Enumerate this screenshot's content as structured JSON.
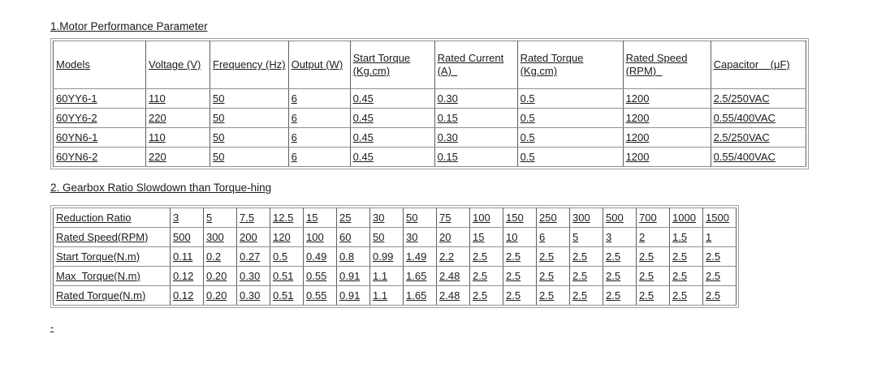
{
  "section1": {
    "title": "1.Motor Performance Parameter",
    "table": {
      "headers": [
        "Models",
        "Voltage (V)",
        "Frequency (Hz)",
        "Output (W)",
        "Start Torque (Kg.cm)",
        "Rated Current (A)  ",
        "Rated Torque (Kg.cm)",
        "Rated Speed (RPM)  ",
        "Capacitor    (μF)"
      ],
      "rows": [
        [
          "60YY6-1",
          "110",
          "50",
          "6",
          "0.45",
          "0.30",
          "0.5",
          "1200",
          "2.5/250VAC"
        ],
        [
          "60YY6-2",
          "220",
          "50",
          "6",
          "0.45",
          "0.15",
          "0.5",
          "1200",
          "0.55/400VAC"
        ],
        [
          "60YN6-1",
          "110",
          "50",
          "6",
          "0.45",
          "0.30",
          "0.5",
          "1200",
          "2.5/250VAC"
        ],
        [
          "60YN6-2",
          "220",
          "50",
          "6",
          "0.45",
          "0.15",
          "0.5",
          "1200",
          "0.55/400VAC"
        ]
      ]
    }
  },
  "section2": {
    "title": "2. Gearbox Ratio Slowdown than Torque-hing",
    "table": {
      "rows": [
        {
          "label": "Reduction Ratio",
          "values": [
            "3",
            "5",
            "7.5",
            "12.5",
            "15",
            "25",
            "30",
            "50",
            "75",
            "100",
            "150",
            "250",
            "300",
            "500",
            "700",
            "1000",
            "1500"
          ]
        },
        {
          "label": "Rated Speed(RPM)",
          "values": [
            "500",
            "300",
            "200",
            "120",
            "100",
            "60",
            "50",
            "30",
            "20",
            "15",
            "10",
            "6",
            "5",
            "3",
            "2",
            "1.5",
            "1"
          ]
        },
        {
          "label": "Start Torque(N.m)",
          "values": [
            "0.11",
            "0.2",
            "0.27",
            "0.5",
            "0.49",
            "0.8",
            "0.99",
            "1.49",
            "2.2",
            "2.5",
            "2.5",
            "2.5",
            "2.5",
            "2.5",
            "2.5",
            "2.5",
            "2.5"
          ]
        },
        {
          "label": "Max  Torque(N.m)",
          "values": [
            "0.12",
            "0.20",
            "0.30",
            "0.51",
            "0.55",
            "0.91",
            "1.1",
            "1.65",
            "2.48",
            "2.5",
            "2.5",
            "2.5",
            "2.5",
            "2.5",
            "2.5",
            "2.5",
            "2.5"
          ]
        },
        {
          "label": "Rated Torque(N.m)",
          "values": [
            "0.12",
            "0.20",
            "0.30",
            "0.51",
            "0.55",
            "0.91",
            "1.1",
            "1.65",
            "2.48",
            "2.5",
            "2.5",
            "2.5",
            "2.5",
            "2.5",
            "2.5",
            "2.5",
            "2.5"
          ]
        }
      ]
    }
  },
  "footer_dash": "-",
  "colors": {
    "text": "#1b1b1b",
    "border_outer": "#a2a2a2",
    "border_cell_vertical": "#5f5f5f",
    "border_cell_horizontal": "#8f8f8f",
    "background": "#ffffff"
  }
}
